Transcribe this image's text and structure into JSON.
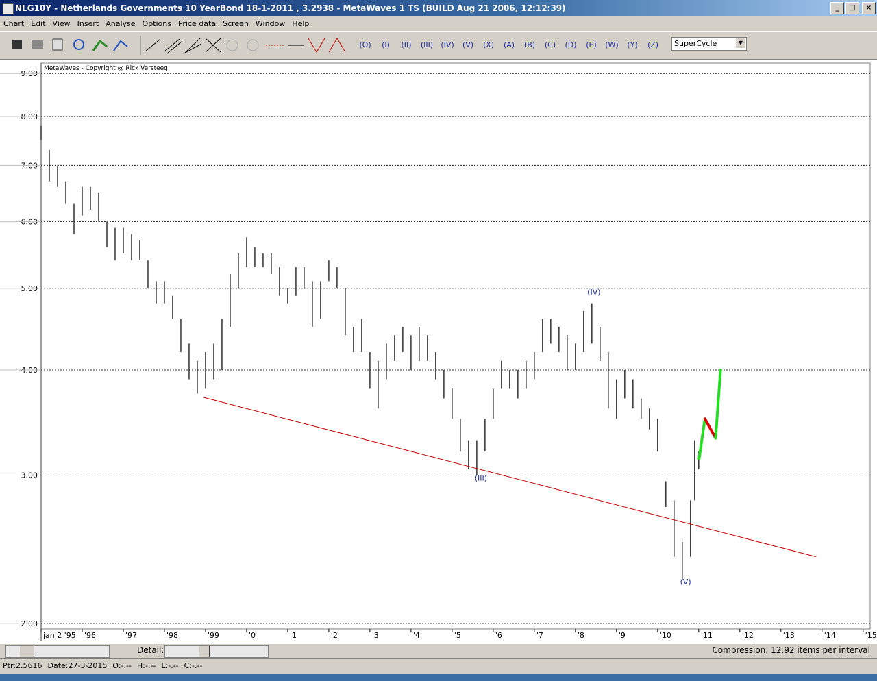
{
  "window": {
    "title": "NLG10Y - Netherlands Governments 10 YearBond  18-1-2011 , 3.2938 - MetaWaves 1 TS      (BUILD Aug 21 2006, 12:12:39)"
  },
  "menu": [
    "Chart",
    "Edit",
    "View",
    "Insert",
    "Analyse",
    "Options",
    "Price data",
    "Screen",
    "Window",
    "Help"
  ],
  "toolbar": {
    "waves": [
      "(O)",
      "(I)",
      "(II)",
      "(III)",
      "(IV)",
      "(V)",
      "(X)",
      "(A)",
      "(B)",
      "(C)",
      "(D)",
      "(E)",
      "(W)",
      "(Y)",
      "(Z)"
    ],
    "degree": "SuperCycle"
  },
  "chart_data": {
    "type": "range",
    "subtitle": "MetaWaves - Copyright @ Rick Versteeg",
    "log_scale": true,
    "grid": true,
    "color": "#000000",
    "xlim": [
      1995.0,
      2015.17
    ],
    "ylim": [
      1.97,
      9.26
    ],
    "yticks": [
      {
        "value": 9,
        "label": "9.00"
      },
      {
        "value": 8,
        "label": "8.00"
      },
      {
        "value": 7,
        "label": "7.00"
      },
      {
        "value": 6,
        "label": "6.00"
      },
      {
        "value": 5,
        "label": "5.00"
      },
      {
        "value": 4,
        "label": "4.00"
      },
      {
        "value": 3,
        "label": "3.00"
      },
      {
        "value": 2,
        "label": "2.00"
      }
    ],
    "xticks": [
      {
        "value": 1995,
        "label": "jan 2 '95"
      },
      {
        "value": 1996,
        "label": "'96"
      },
      {
        "value": 1997,
        "label": "'97"
      },
      {
        "value": 1998,
        "label": "'98"
      },
      {
        "value": 1999,
        "label": "'99"
      },
      {
        "value": 2000,
        "label": "'0"
      },
      {
        "value": 2001,
        "label": "'1"
      },
      {
        "value": 2002,
        "label": "'2"
      },
      {
        "value": 2003,
        "label": "'3"
      },
      {
        "value": 2004,
        "label": "'4"
      },
      {
        "value": 2005,
        "label": "'5"
      },
      {
        "value": 2006,
        "label": "'6"
      },
      {
        "value": 2007,
        "label": "'7"
      },
      {
        "value": 2008,
        "label": "'8"
      },
      {
        "value": 2009,
        "label": "'9"
      },
      {
        "value": 2010,
        "label": "'10"
      },
      {
        "value": 2011,
        "label": "'11"
      },
      {
        "value": 2012,
        "label": "'12"
      },
      {
        "value": 2013,
        "label": "'13"
      },
      {
        "value": 2014,
        "label": "'14"
      },
      {
        "value": 2015,
        "label": "'15"
      }
    ],
    "x": [
      1995.0,
      1995.2,
      1995.4,
      1995.6,
      1995.8,
      1996.0,
      1996.2,
      1996.4,
      1996.6,
      1996.8,
      1997.0,
      1997.2,
      1997.4,
      1997.6,
      1997.8,
      1998.0,
      1998.2,
      1998.4,
      1998.6,
      1998.8,
      1999.0,
      1999.2,
      1999.4,
      1999.6,
      1999.8,
      2000.0,
      2000.2,
      2000.4,
      2000.6,
      2000.8,
      2001.0,
      2001.2,
      2001.4,
      2001.6,
      2001.8,
      2002.0,
      2002.2,
      2002.4,
      2002.6,
      2002.8,
      2003.0,
      2003.2,
      2003.4,
      2003.6,
      2003.8,
      2004.0,
      2004.2,
      2004.4,
      2004.6,
      2004.8,
      2005.0,
      2005.2,
      2005.4,
      2005.6,
      2005.8,
      2006.0,
      2006.2,
      2006.4,
      2006.6,
      2006.8,
      2007.0,
      2007.2,
      2007.4,
      2007.6,
      2007.8,
      2008.0,
      2008.2,
      2008.4,
      2008.6,
      2008.8,
      2009.0,
      2009.2,
      2009.4,
      2009.6,
      2009.8,
      2010.0,
      2010.2,
      2010.4,
      2010.6,
      2010.8,
      2010.9,
      2011.0
    ],
    "high": [
      7.8,
      7.3,
      7.0,
      6.7,
      6.3,
      6.6,
      6.6,
      6.5,
      6.0,
      5.9,
      5.9,
      5.8,
      5.7,
      5.4,
      5.1,
      5.1,
      4.9,
      4.6,
      4.3,
      4.1,
      4.2,
      4.3,
      4.6,
      5.2,
      5.5,
      5.75,
      5.6,
      5.5,
      5.5,
      5.3,
      5.0,
      5.3,
      5.3,
      5.1,
      5.1,
      5.4,
      5.3,
      5.0,
      4.5,
      4.6,
      4.2,
      4.1,
      4.3,
      4.4,
      4.5,
      4.4,
      4.5,
      4.4,
      4.2,
      4.0,
      3.8,
      3.5,
      3.3,
      3.3,
      3.5,
      3.8,
      4.1,
      4.0,
      4.0,
      4.1,
      4.2,
      4.6,
      4.6,
      4.5,
      4.4,
      4.3,
      4.7,
      4.8,
      4.5,
      4.2,
      3.9,
      4.0,
      3.9,
      3.7,
      3.6,
      3.5,
      2.95,
      2.8,
      2.5,
      2.8,
      3.3,
      3.2
    ],
    "low": [
      7.5,
      6.7,
      6.6,
      6.3,
      5.8,
      6.1,
      6.2,
      6.0,
      5.6,
      5.4,
      5.5,
      5.4,
      5.4,
      5.0,
      4.8,
      4.8,
      4.6,
      4.2,
      3.9,
      3.75,
      3.8,
      3.9,
      4.0,
      4.5,
      5.0,
      5.3,
      5.3,
      5.3,
      5.2,
      4.9,
      4.8,
      4.9,
      5.0,
      4.5,
      4.6,
      5.1,
      5.0,
      4.4,
      4.2,
      4.2,
      3.8,
      3.6,
      3.9,
      4.1,
      4.2,
      4.0,
      4.1,
      4.1,
      3.9,
      3.7,
      3.5,
      3.2,
      3.05,
      3.0,
      3.2,
      3.5,
      3.8,
      3.8,
      3.7,
      3.8,
      3.9,
      4.2,
      4.3,
      4.2,
      4.0,
      4.0,
      4.2,
      4.3,
      4.1,
      3.6,
      3.5,
      3.7,
      3.6,
      3.5,
      3.4,
      3.2,
      2.75,
      2.4,
      2.25,
      2.4,
      2.8,
      3.05
    ],
    "trendline": {
      "x": [
        1998.96,
        2013.85
      ],
      "values": [
        3.71,
        2.4
      ],
      "color": "#c00000"
    },
    "projection": {
      "x": [
        2011.01,
        2011.15,
        2011.41,
        2011.53
      ],
      "values": [
        3.14,
        3.5,
        3.32,
        4.0
      ],
      "colors": [
        "#22dd22",
        "#dd0000",
        "#22dd22"
      ]
    },
    "annotations": [
      {
        "text": "(III)",
        "x": 2005.7,
        "y": 2.99
      },
      {
        "text": "(IV)",
        "x": 2008.45,
        "y": 4.97
      },
      {
        "text": "(V)",
        "x": 2010.68,
        "y": 2.25
      }
    ]
  },
  "scroll": {
    "detail": "Detail:",
    "compression": "Compression: 12.92 items per interval"
  },
  "status": [
    "Ptr:2.5616",
    "Date:27-3-2015",
    "O:-.--",
    "H:-.--",
    "L:-.--",
    "C:-.--"
  ]
}
